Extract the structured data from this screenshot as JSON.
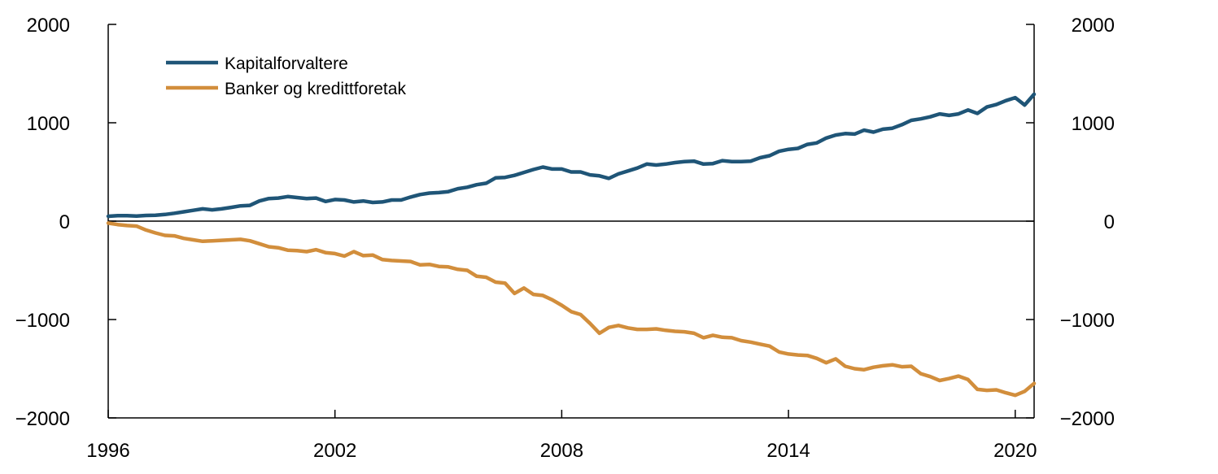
{
  "chart_data": {
    "type": "line",
    "title": "",
    "xlabel": "",
    "ylabel": "",
    "xlim": [
      1996,
      2020.5
    ],
    "ylim": [
      -2000,
      2000
    ],
    "x_ticks": [
      "1996",
      "2002",
      "2008",
      "2014",
      "2020"
    ],
    "y_ticks_left": [
      "2000",
      "1000",
      "0",
      "−1000",
      "−2000"
    ],
    "y_ticks_right": [
      "2000",
      "1000",
      "0",
      "−1000",
      "−2000"
    ],
    "grid": false,
    "legend_position": "top-left",
    "series": [
      {
        "name": "Kapitalforvaltere",
        "color": "#1f5577",
        "x": [
          1996.0,
          1996.25,
          1996.5,
          1996.75,
          1997.0,
          1997.25,
          1997.5,
          1997.75,
          1998.0,
          1998.25,
          1998.5,
          1998.75,
          1999.0,
          1999.25,
          1999.5,
          1999.75,
          2000.0,
          2000.25,
          2000.5,
          2000.75,
          2001.0,
          2001.25,
          2001.5,
          2001.75,
          2002.0,
          2002.25,
          2002.5,
          2002.75,
          2003.0,
          2003.25,
          2003.5,
          2003.75,
          2004.0,
          2004.25,
          2004.5,
          2004.75,
          2005.0,
          2005.25,
          2005.5,
          2005.75,
          2006.0,
          2006.25,
          2006.5,
          2006.75,
          2007.0,
          2007.25,
          2007.5,
          2007.75,
          2008.0,
          2008.25,
          2008.5,
          2008.75,
          2009.0,
          2009.25,
          2009.5,
          2009.75,
          2010.0,
          2010.25,
          2010.5,
          2010.75,
          2011.0,
          2011.25,
          2011.5,
          2011.75,
          2012.0,
          2012.25,
          2012.5,
          2012.75,
          2013.0,
          2013.25,
          2013.5,
          2013.75,
          2014.0,
          2014.25,
          2014.5,
          2014.75,
          2015.0,
          2015.25,
          2015.5,
          2015.75,
          2016.0,
          2016.25,
          2016.5,
          2016.75,
          2017.0,
          2017.25,
          2017.5,
          2017.75,
          2018.0,
          2018.25,
          2018.5,
          2018.75,
          2019.0,
          2019.25,
          2019.5,
          2019.75,
          2020.0,
          2020.25,
          2020.5
        ],
        "values": [
          50,
          55,
          55,
          52,
          58,
          60,
          68,
          80,
          95,
          110,
          125,
          115,
          125,
          140,
          155,
          160,
          205,
          230,
          235,
          250,
          240,
          230,
          235,
          200,
          220,
          215,
          195,
          205,
          190,
          195,
          215,
          215,
          245,
          270,
          285,
          290,
          300,
          330,
          345,
          370,
          385,
          440,
          445,
          465,
          495,
          525,
          550,
          530,
          530,
          500,
          500,
          470,
          460,
          435,
          480,
          510,
          540,
          580,
          570,
          580,
          595,
          605,
          610,
          580,
          585,
          615,
          605,
          605,
          610,
          645,
          665,
          710,
          730,
          740,
          780,
          795,
          845,
          875,
          890,
          885,
          925,
          905,
          935,
          945,
          980,
          1025,
          1040,
          1060,
          1090,
          1075,
          1090,
          1130,
          1095,
          1160,
          1185,
          1225,
          1255,
          1180,
          1290
        ]
      },
      {
        "name": "Banker og kredittforetak",
        "color": "#d28e3c",
        "x": [
          1996.0,
          1996.25,
          1996.5,
          1996.75,
          1997.0,
          1997.25,
          1997.5,
          1997.75,
          1998.0,
          1998.25,
          1998.5,
          1998.75,
          1999.0,
          1999.25,
          1999.5,
          1999.75,
          2000.0,
          2000.25,
          2000.5,
          2000.75,
          2001.0,
          2001.25,
          2001.5,
          2001.75,
          2002.0,
          2002.25,
          2002.5,
          2002.75,
          2003.0,
          2003.25,
          2003.5,
          2003.75,
          2004.0,
          2004.25,
          2004.5,
          2004.75,
          2005.0,
          2005.25,
          2005.5,
          2005.75,
          2006.0,
          2006.25,
          2006.5,
          2006.75,
          2007.0,
          2007.25,
          2007.5,
          2007.75,
          2008.0,
          2008.25,
          2008.5,
          2008.75,
          2009.0,
          2009.25,
          2009.5,
          2009.75,
          2010.0,
          2010.25,
          2010.5,
          2010.75,
          2011.0,
          2011.25,
          2011.5,
          2011.75,
          2012.0,
          2012.25,
          2012.5,
          2012.75,
          2013.0,
          2013.25,
          2013.5,
          2013.75,
          2014.0,
          2014.25,
          2014.5,
          2014.75,
          2015.0,
          2015.25,
          2015.5,
          2015.75,
          2016.0,
          2016.25,
          2016.5,
          2016.75,
          2017.0,
          2017.25,
          2017.5,
          2017.75,
          2018.0,
          2018.25,
          2018.5,
          2018.75,
          2019.0,
          2019.25,
          2019.5,
          2019.75,
          2020.0,
          2020.25,
          2020.5
        ],
        "values": [
          -20,
          -35,
          -45,
          -50,
          -90,
          -120,
          -145,
          -150,
          -175,
          -190,
          -205,
          -200,
          -195,
          -190,
          -185,
          -200,
          -230,
          -260,
          -270,
          -295,
          -300,
          -310,
          -290,
          -320,
          -330,
          -355,
          -310,
          -350,
          -345,
          -390,
          -400,
          -405,
          -410,
          -445,
          -440,
          -460,
          -465,
          -490,
          -500,
          -560,
          -570,
          -620,
          -630,
          -735,
          -680,
          -745,
          -755,
          -800,
          -855,
          -920,
          -950,
          -1040,
          -1140,
          -1080,
          -1060,
          -1085,
          -1100,
          -1100,
          -1095,
          -1110,
          -1120,
          -1125,
          -1140,
          -1185,
          -1160,
          -1180,
          -1185,
          -1215,
          -1230,
          -1250,
          -1270,
          -1330,
          -1350,
          -1360,
          -1365,
          -1395,
          -1440,
          -1400,
          -1475,
          -1500,
          -1510,
          -1485,
          -1470,
          -1460,
          -1480,
          -1475,
          -1550,
          -1580,
          -1620,
          -1600,
          -1575,
          -1610,
          -1710,
          -1720,
          -1715,
          -1745,
          -1770,
          -1730,
          -1650
        ]
      }
    ]
  }
}
